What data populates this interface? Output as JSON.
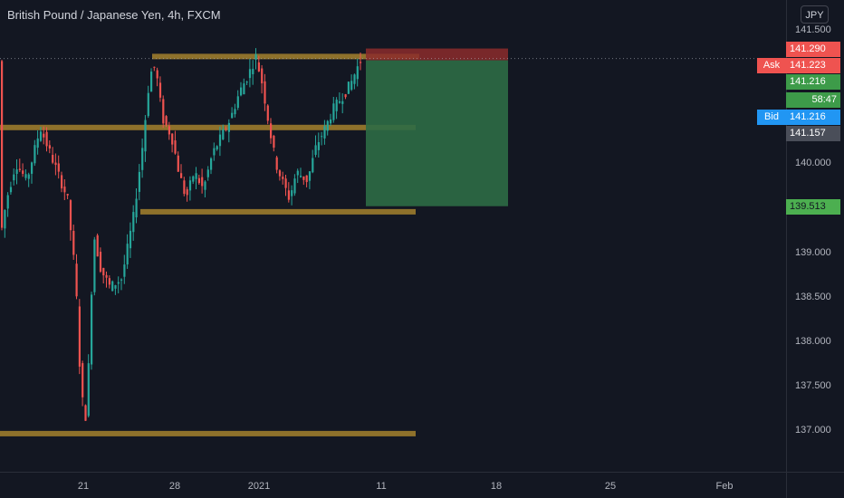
{
  "header": {
    "title": "British Pound / Japanese Yen, 4h, FXCM"
  },
  "currency_button": "JPY",
  "price_ticks": [
    "141.500",
    "140.000",
    "139.000",
    "138.500",
    "138.000",
    "137.500",
    "137.000"
  ],
  "time_ticks": [
    "21",
    "28",
    "2021",
    "11",
    "18",
    "25",
    "Feb"
  ],
  "price_labels": {
    "stop": "141.290",
    "ask_tag": "Ask",
    "ask": "141.223",
    "last": "141.216",
    "countdown": "58:47",
    "bid_tag": "Bid",
    "bid": "141.216",
    "entry": "141.157",
    "target": "139.513"
  },
  "colors": {
    "background": "#131722",
    "bull": "#26a69a",
    "bear": "#ef5350",
    "level_line": "#b8902f",
    "profit_zone": "#2e6b45",
    "loss_zone": "#8c2b2b",
    "ask": "#ef5350",
    "bid": "#2196f3",
    "last_price": "#3d9b49",
    "entry_label": "#4a4e59",
    "target_label": "#4caf50"
  },
  "levels": [
    141.2,
    140.4,
    139.45,
    136.95
  ],
  "position": {
    "entry": 141.157,
    "stop": 141.29,
    "target": 139.513
  }
}
